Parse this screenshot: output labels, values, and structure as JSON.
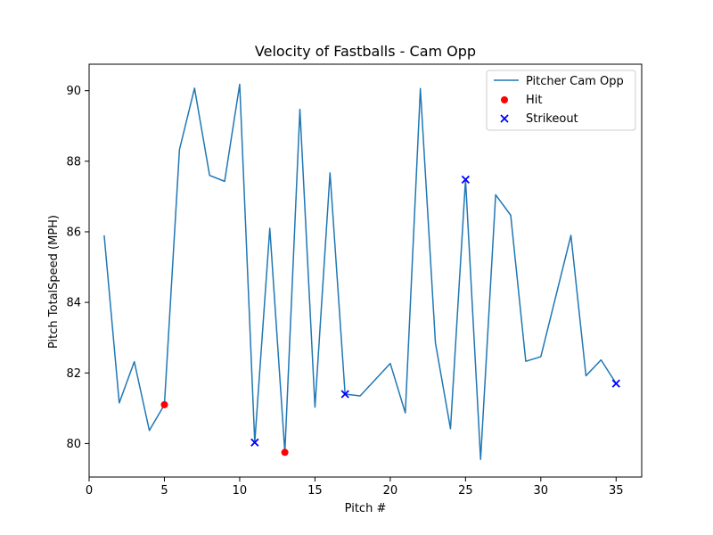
{
  "chart_data": {
    "type": "line",
    "title": "Velocity of Fastballs - Cam Opp",
    "xlabel": "Pitch #",
    "ylabel": "Pitch TotalSpeed (MPH)",
    "xlim": [
      0,
      36.7
    ],
    "ylim": [
      79.05,
      90.75
    ],
    "xticks": [
      0,
      5,
      10,
      15,
      20,
      25,
      30,
      35
    ],
    "yticks": [
      80,
      82,
      84,
      86,
      88,
      90
    ],
    "grid": false,
    "legend_position": "top-right",
    "series": [
      {
        "name": "Pitcher Cam Opp",
        "type": "line",
        "color": "#1f77b4",
        "x": [
          1,
          2,
          3,
          4,
          5,
          6,
          7,
          8,
          9,
          10,
          11,
          12,
          13,
          14,
          15,
          16,
          17,
          18,
          20,
          21,
          22,
          23,
          24,
          25,
          26,
          27,
          28,
          29,
          30,
          32,
          33,
          34,
          35
        ],
        "y": [
          85.9,
          81.15,
          82.32,
          80.37,
          81.1,
          88.33,
          90.07,
          87.6,
          87.43,
          90.18,
          80.03,
          86.1,
          79.75,
          89.47,
          81.03,
          87.67,
          81.4,
          81.35,
          82.27,
          80.87,
          90.06,
          82.85,
          80.42,
          87.48,
          79.55,
          87.05,
          86.47,
          82.33,
          82.46,
          85.9,
          81.92,
          82.37,
          81.7
        ]
      },
      {
        "name": "Hit",
        "type": "scatter",
        "marker": "circle",
        "color": "#ff0000",
        "x": [
          5,
          13
        ],
        "y": [
          81.1,
          79.75
        ]
      },
      {
        "name": "Strikeout",
        "type": "scatter",
        "marker": "x",
        "color": "#0000ff",
        "x": [
          11,
          17,
          25,
          35
        ],
        "y": [
          80.03,
          81.4,
          87.48,
          81.7
        ]
      }
    ]
  }
}
